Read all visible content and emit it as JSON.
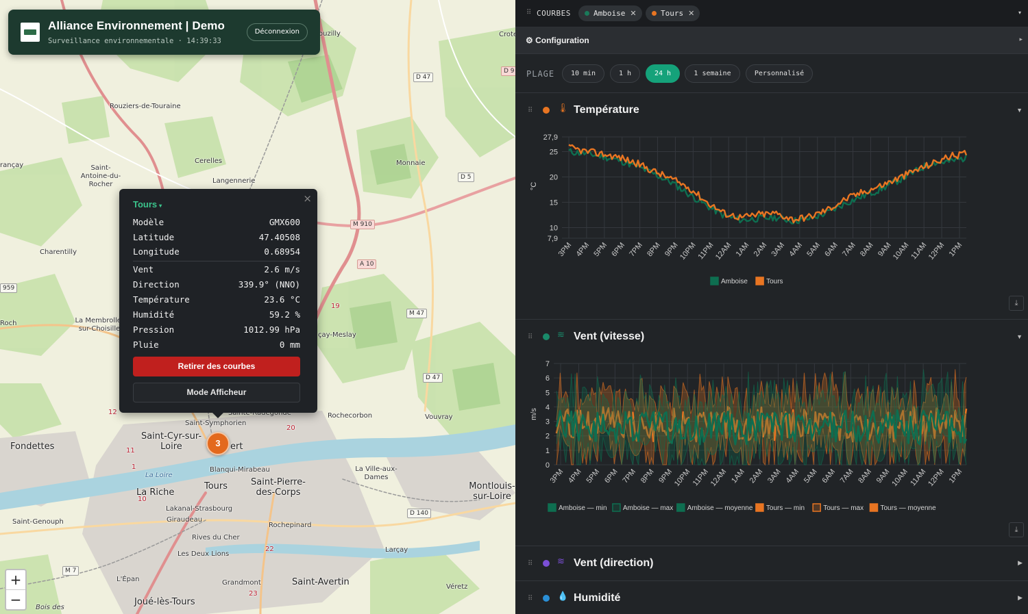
{
  "header": {
    "title": "Alliance Environnement | Demo",
    "subtitle": "Surveillance environnementale · 14:39:33",
    "logout_label": "Déconnexion"
  },
  "map": {
    "places": [
      "Rouziers-de-Touraine",
      "Cerelles",
      "Langennerie",
      "Saint-Antoine-du-Rocher",
      "Monnaie",
      "Charentilly",
      "La Membrolle-sur-Choisille",
      "Fondettes",
      "Saint-Cyr-sur-Loire",
      "Saint-Symphorien",
      "Sainte-Radegonde",
      "Rochecorbon",
      "Vouvray",
      "Tours",
      "Blanqui-Mirabeau",
      "Saint-Pierre-des-Corps",
      "La Riche",
      "Lakanal-Strasbourg",
      "Giraudeau",
      "Rives du Cher",
      "Les Deux Lions",
      "Rochepinard",
      "La Ville-aux-Dames",
      "Montlouis-sur-Loire",
      "Larçay",
      "Saint-Genouph",
      "L'Épan",
      "Grandmont",
      "Saint-Avertin",
      "Joué-lès-Tours",
      "Véretz",
      "La Loire",
      "Bois des",
      "Roch",
      "rançay",
      "ouzilly",
      "Crote",
      "çay-Meslay",
      "ert"
    ],
    "roads": [
      "D 47",
      "D 9",
      "D 5",
      "M 910",
      "A 10",
      "M 47",
      "D 47",
      "D 140",
      "M 7",
      "959",
      "19",
      "12",
      "20",
      "10",
      "22",
      "23",
      "11",
      "1"
    ],
    "marker_count": "3",
    "zoom_in": "+",
    "zoom_out": "−"
  },
  "popup": {
    "station": "Tours",
    "close": "×",
    "rows": [
      {
        "label": "Modèle",
        "value": "GMX600"
      },
      {
        "label": "Latitude",
        "value": "47.40508"
      },
      {
        "label": "Longitude",
        "value": "0.68954"
      },
      {
        "label": "Vent",
        "value": "2.6 m/s"
      },
      {
        "label": "Direction",
        "value": "339.9° (NNO)"
      },
      {
        "label": "Température",
        "value": "23.6 °C"
      },
      {
        "label": "Humidité",
        "value": "59.2 %"
      },
      {
        "label": "Pression",
        "value": "1012.99 hPa"
      },
      {
        "label": "Pluie",
        "value": "0 mm"
      }
    ],
    "remove_label": "Retirer des courbes",
    "display_label": "Mode Afficheur"
  },
  "panel": {
    "courbes_label": "COURBES",
    "chips": [
      {
        "label": "Amboise",
        "color": "#1a7a5a"
      },
      {
        "label": "Tours",
        "color": "#e87522"
      }
    ],
    "config_label": "⚙ Configuration",
    "range_label": "PLAGE",
    "ranges": [
      "10 min",
      "1 h",
      "24 h",
      "1 semaine",
      "Personnalisé"
    ],
    "active_range": "24 h",
    "sections": [
      {
        "title": "Température",
        "dot": "#e87522",
        "icon": "🌡",
        "icon_color": "#e87522"
      },
      {
        "title": "Vent (vitesse)",
        "dot": "#1a8a6a",
        "icon": "≋",
        "icon_color": "#1a8a6a"
      },
      {
        "title": "Vent (direction)",
        "dot": "#7b4fd6",
        "icon": "≋",
        "icon_color": "#7b4fd6"
      },
      {
        "title": "Humidité",
        "dot": "#2a8fd6",
        "icon": "💧",
        "icon_color": "#2a8fd6"
      }
    ],
    "download_icon": "⤓"
  },
  "chart_data": [
    {
      "type": "line",
      "ylabel": "°C",
      "ylim": [
        7.9,
        27.9
      ],
      "yticks": [
        "27,9",
        "25",
        "20",
        "15",
        "10",
        "7,9"
      ],
      "x_ticks": [
        "3PM",
        "4PM",
        "5PM",
        "6PM",
        "7PM",
        "8PM",
        "9PM",
        "10PM",
        "11PM",
        "12AM",
        "1AM",
        "2AM",
        "3AM",
        "4AM",
        "5AM",
        "6AM",
        "7AM",
        "8AM",
        "9AM",
        "10AM",
        "11AM",
        "12PM",
        "1PM"
      ],
      "series": [
        {
          "name": "Amboise",
          "color": "#0e6e50",
          "values": [
            25.0,
            24.6,
            24.0,
            23.2,
            22.0,
            20.5,
            18.8,
            16.5,
            14.3,
            12.3,
            11.5,
            11.8,
            12.0,
            11.3,
            11.8,
            13.0,
            14.8,
            16.2,
            17.5,
            19.2,
            21.0,
            22.8,
            23.0,
            23.8
          ]
        },
        {
          "name": "Tours",
          "color": "#e87522",
          "values": [
            25.8,
            25.0,
            24.5,
            23.8,
            22.6,
            21.0,
            19.5,
            17.8,
            15.0,
            12.8,
            12.0,
            12.6,
            12.8,
            11.6,
            12.2,
            13.6,
            15.6,
            17.0,
            18.2,
            19.6,
            21.2,
            22.6,
            24.0,
            24.6
          ]
        }
      ],
      "legend": [
        "Amboise",
        "Tours"
      ]
    },
    {
      "type": "area",
      "ylabel": "m/s",
      "ylim": [
        0,
        7
      ],
      "yticks": [
        "7",
        "6",
        "5",
        "4",
        "3",
        "2",
        "1",
        "0"
      ],
      "x_ticks": [
        "3PM",
        "4PM",
        "5PM",
        "6PM",
        "7PM",
        "8PM",
        "9PM",
        "10PM",
        "11PM",
        "12AM",
        "1AM",
        "2AM",
        "3AM",
        "4AM",
        "5AM",
        "6AM",
        "7AM",
        "8AM",
        "9AM",
        "10AM",
        "11AM",
        "12PM",
        "1PM"
      ],
      "series": [
        {
          "name": "Amboise — min",
          "color": "#0e6e50"
        },
        {
          "name": "Amboise — max",
          "color": "#0e6e50"
        },
        {
          "name": "Amboise — moyenne",
          "color": "#0e6e50"
        },
        {
          "name": "Tours — min",
          "color": "#e87522"
        },
        {
          "name": "Tours — max",
          "color": "#e87522"
        },
        {
          "name": "Tours — moyenne",
          "color": "#e87522"
        }
      ],
      "mean_level": {
        "Amboise": 2.6,
        "Tours": 2.8
      },
      "legend": [
        "Amboise — min",
        "Amboise — max",
        "Amboise — moyenne",
        "Tours — min",
        "Tours — max",
        "Tours — moyenne"
      ]
    }
  ]
}
